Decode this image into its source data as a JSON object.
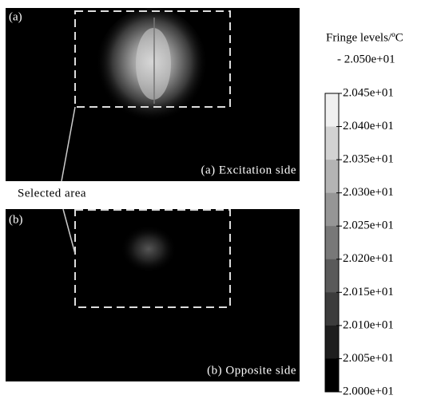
{
  "panels": [
    {
      "label": "(a)",
      "caption": "(a) Excitation side"
    },
    {
      "label": "(b)",
      "caption": "(b) Opposite side"
    }
  ],
  "annotation": "Selected area",
  "legend": {
    "title": "Fringe levels/ºC",
    "max": "- 2.050e+01",
    "levels": [
      "2.045e+01",
      "2.040e+01",
      "2.035e+01",
      "2.030e+01",
      "2.025e+01",
      "2.020e+01",
      "2.015e+01",
      "2.010e+01",
      "2.005e+01",
      "2.000e+01"
    ]
  }
}
